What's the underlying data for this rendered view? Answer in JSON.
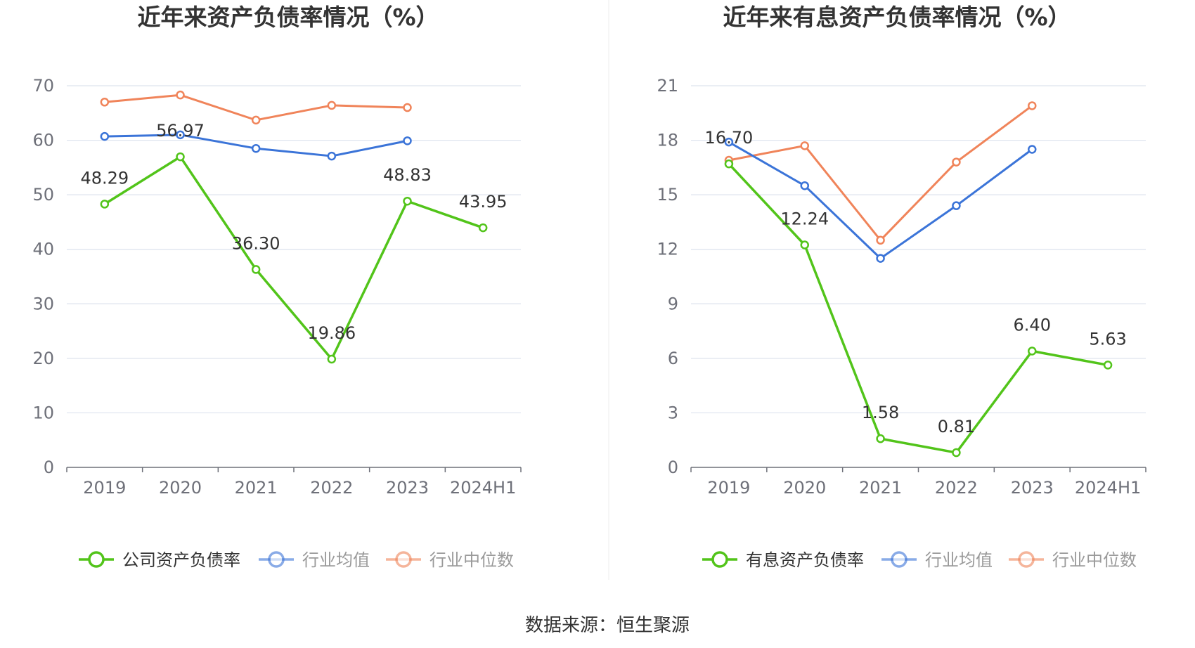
{
  "source_text": "数据来源：恒生聚源",
  "colors": {
    "company": "#52c41a",
    "avg": "#3b74d8",
    "median": "#f0845a",
    "grid": "#dde3ee",
    "axis": "#6e7079"
  },
  "chart_data": [
    {
      "type": "line",
      "title": "近年来资产负债率情况（%）",
      "xlabel": "",
      "ylabel": "",
      "categories": [
        "2019",
        "2020",
        "2021",
        "2022",
        "2023",
        "2024H1"
      ],
      "ylim": [
        0,
        70
      ],
      "yticks": [
        0,
        10,
        20,
        30,
        40,
        50,
        60,
        70
      ],
      "grid": true,
      "legend_position": "bottom",
      "series": [
        {
          "name": "公司资产负债率",
          "color_key": "company",
          "values": [
            48.29,
            56.97,
            36.3,
            19.86,
            48.83,
            43.95
          ],
          "labels": [
            "48.29",
            "56.97",
            "36.30",
            "19.86",
            "48.83",
            "43.95"
          ]
        },
        {
          "name": "行业均值",
          "color_key": "avg",
          "values": [
            60.7,
            61.0,
            58.5,
            57.1,
            59.9,
            null
          ]
        },
        {
          "name": "行业中位数",
          "color_key": "median",
          "values": [
            67.0,
            68.3,
            63.7,
            66.4,
            66.0,
            null
          ]
        }
      ]
    },
    {
      "type": "line",
      "title": "近年来有息资产负债率情况（%）",
      "xlabel": "",
      "ylabel": "",
      "categories": [
        "2019",
        "2020",
        "2021",
        "2022",
        "2023",
        "2024H1"
      ],
      "ylim": [
        0,
        21
      ],
      "yticks": [
        0,
        3,
        6,
        9,
        12,
        15,
        18,
        21
      ],
      "grid": true,
      "legend_position": "bottom",
      "series": [
        {
          "name": "有息资产负债率",
          "color_key": "company",
          "values": [
            16.7,
            12.24,
            1.58,
            0.81,
            6.4,
            5.63
          ],
          "labels": [
            "16.70",
            "12.24",
            "1.58",
            "0.81",
            "6.40",
            "5.63"
          ]
        },
        {
          "name": "行业均值",
          "color_key": "avg",
          "values": [
            17.9,
            15.5,
            11.5,
            14.4,
            17.5,
            null
          ]
        },
        {
          "name": "行业中位数",
          "color_key": "median",
          "values": [
            16.9,
            17.7,
            12.5,
            16.8,
            19.9,
            null
          ]
        }
      ]
    }
  ]
}
